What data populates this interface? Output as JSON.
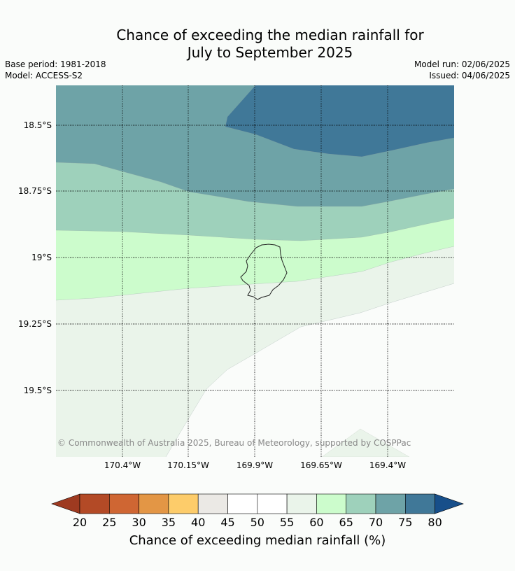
{
  "title_line1": "Chance of exceeding the median rainfall for",
  "title_line2": "July to September 2025",
  "base_period": "Base period: 1981-2018",
  "model": "Model: ACCESS-S2",
  "model_run": "Model run: 02/06/2025",
  "issued": "Issued: 04/06/2025",
  "copyright": "© Commonwealth of Australia 2025, Bureau of Meteorology, supported by COSPPac",
  "map": {
    "lat_labels": [
      "18.5°S",
      "18.75°S",
      "19°S",
      "19.25°S",
      "19.5°S"
    ],
    "lon_labels": [
      "170.4°W",
      "170.15°W",
      "169.9°W",
      "169.65°W",
      "169.4°W"
    ]
  },
  "colorbar": {
    "label": "Chance of exceeding median rainfall (%)",
    "ticks": [
      "20",
      "25",
      "30",
      "35",
      "40",
      "45",
      "50",
      "55",
      "60",
      "65",
      "70",
      "75",
      "80"
    ],
    "colors": {
      "under": "#9e3a20",
      "c20_25": "#b34a26",
      "c25_30": "#cf6633",
      "c30_35": "#e39645",
      "c35_40": "#fdcc6a",
      "c40_45": "#ebe9e5",
      "c45_50": "#ffffff",
      "c50_55": "#ffffff",
      "c55_60": "#eaf4ea",
      "c60_65": "#ccfccc",
      "c65_70": "#9ed1bb",
      "c70_75": "#6ea3a7",
      "c75_80": "#407898",
      "over": "#174f8a"
    }
  }
}
